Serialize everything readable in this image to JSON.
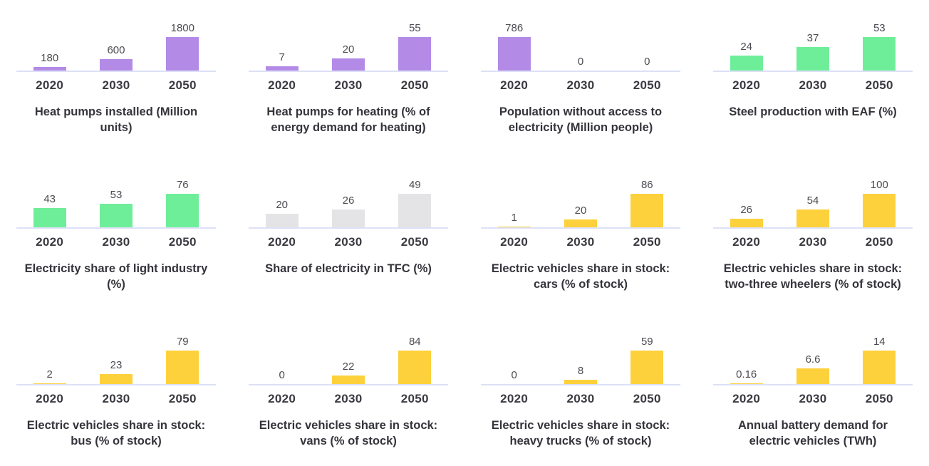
{
  "page": {
    "background": "#ffffff"
  },
  "palette": {
    "purple": "#b38be7",
    "green": "#6fee9a",
    "yellow": "#fdd13c",
    "gray": "#e4e4e6",
    "axis_line": "#dde1f6",
    "value_label_text": "#4b4b52",
    "year_label_text": "#3a3a41",
    "title_text": "#34343b"
  },
  "categories": [
    "2020",
    "2030",
    "2050"
  ],
  "chart_data": [
    {
      "type": "bar",
      "title": "Heat pumps installed (Million units)",
      "categories": [
        "2020",
        "2030",
        "2050"
      ],
      "values": [
        180,
        600,
        1800
      ],
      "labels": [
        "180",
        "600",
        "1800"
      ],
      "color": "purple",
      "ylim": [
        0,
        1800
      ],
      "grid": false,
      "legend": "none"
    },
    {
      "type": "bar",
      "title": "Heat pumps for heating (% of energy demand for heating)",
      "categories": [
        "2020",
        "2030",
        "2050"
      ],
      "values": [
        7,
        20,
        55
      ],
      "labels": [
        "7",
        "20",
        "55"
      ],
      "color": "purple",
      "ylim": [
        0,
        55
      ],
      "grid": false,
      "legend": "none"
    },
    {
      "type": "bar",
      "title": "Population without access to electricity (Million people)",
      "categories": [
        "2020",
        "2030",
        "2050"
      ],
      "values": [
        786,
        0,
        0
      ],
      "labels": [
        "786",
        "0",
        "0"
      ],
      "color": "purple",
      "ylim": [
        0,
        786
      ],
      "grid": false,
      "legend": "none"
    },
    {
      "type": "bar",
      "title": "Steel production with EAF (%)",
      "categories": [
        "2020",
        "2030",
        "2050"
      ],
      "values": [
        24,
        37,
        53
      ],
      "labels": [
        "24",
        "37",
        "53"
      ],
      "color": "green",
      "ylim": [
        0,
        53
      ],
      "grid": false,
      "legend": "none"
    },
    {
      "type": "bar",
      "title": "Electricity share of light industry (%)",
      "categories": [
        "2020",
        "2030",
        "2050"
      ],
      "values": [
        43,
        53,
        76
      ],
      "labels": [
        "43",
        "53",
        "76"
      ],
      "color": "green",
      "ylim": [
        0,
        76
      ],
      "grid": false,
      "legend": "none"
    },
    {
      "type": "bar",
      "title": "Share of electricity in TFC (%)",
      "categories": [
        "2020",
        "2030",
        "2050"
      ],
      "values": [
        20,
        26,
        49
      ],
      "labels": [
        "20",
        "26",
        "49"
      ],
      "color": "gray",
      "ylim": [
        0,
        49
      ],
      "grid": false,
      "legend": "none"
    },
    {
      "type": "bar",
      "title": "Electric vehicles share in stock: cars (% of stock)",
      "categories": [
        "2020",
        "2030",
        "2050"
      ],
      "values": [
        1,
        20,
        86
      ],
      "labels": [
        "1",
        "20",
        "86"
      ],
      "color": "yellow",
      "ylim": [
        0,
        86
      ],
      "grid": false,
      "legend": "none"
    },
    {
      "type": "bar",
      "title": "Electric vehicles share in stock: two-three wheelers (% of stock)",
      "categories": [
        "2020",
        "2030",
        "2050"
      ],
      "values": [
        26,
        54,
        100
      ],
      "labels": [
        "26",
        "54",
        "100"
      ],
      "color": "yellow",
      "ylim": [
        0,
        100
      ],
      "grid": false,
      "legend": "none"
    },
    {
      "type": "bar",
      "title": "Electric vehicles share in stock: bus (% of stock)",
      "categories": [
        "2020",
        "2030",
        "2050"
      ],
      "values": [
        2,
        23,
        79
      ],
      "labels": [
        "2",
        "23",
        "79"
      ],
      "color": "yellow",
      "ylim": [
        0,
        79
      ],
      "grid": false,
      "legend": "none"
    },
    {
      "type": "bar",
      "title": "Electric vehicles share in stock: vans (% of stock)",
      "categories": [
        "2020",
        "2030",
        "2050"
      ],
      "values": [
        0,
        22,
        84
      ],
      "labels": [
        "0",
        "22",
        "84"
      ],
      "color": "yellow",
      "ylim": [
        0,
        84
      ],
      "grid": false,
      "legend": "none"
    },
    {
      "type": "bar",
      "title": "Electric vehicles share in stock: heavy trucks (% of stock)",
      "categories": [
        "2020",
        "2030",
        "2050"
      ],
      "values": [
        0,
        8,
        59
      ],
      "labels": [
        "0",
        "8",
        "59"
      ],
      "color": "yellow",
      "ylim": [
        0,
        59
      ],
      "grid": false,
      "legend": "none"
    },
    {
      "type": "bar",
      "title": "Annual battery demand for electric vehicles (TWh)",
      "categories": [
        "2020",
        "2030",
        "2050"
      ],
      "values": [
        0.16,
        6.6,
        14
      ],
      "labels": [
        "0.16",
        "6.6",
        "14"
      ],
      "color": "yellow",
      "ylim": [
        0,
        14
      ],
      "grid": false,
      "legend": "none"
    }
  ]
}
